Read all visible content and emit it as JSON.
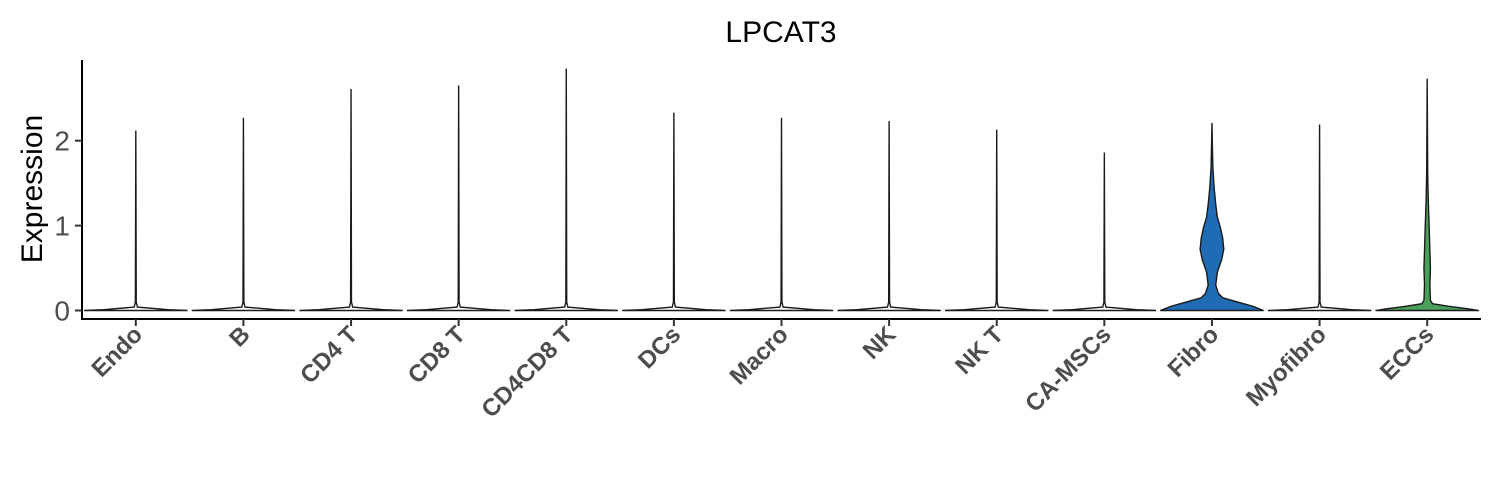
{
  "chart_data": {
    "type": "violin",
    "title": "LPCAT3",
    "xlabel": "",
    "ylabel": "Expression",
    "ylim": [
      -0.1,
      2.95
    ],
    "yticks": [
      0,
      1,
      2
    ],
    "grid": false,
    "legend": "none",
    "categories": [
      "Endo",
      "B",
      "CD4 T",
      "CD8 T",
      "CD4CD8 T",
      "DCs",
      "Macro",
      "NK",
      "NK T",
      "CA-MSCs",
      "Fibro",
      "Myofibro",
      "ECCs"
    ],
    "series": [
      {
        "max": 2.12,
        "color": "#ffffff",
        "profile": [
          [
            0,
            0.48
          ],
          [
            0.01,
            0.3
          ],
          [
            0.04,
            0.015
          ],
          [
            0.1,
            0.004
          ]
        ]
      },
      {
        "max": 2.27,
        "color": "#ffffff",
        "profile": [
          [
            0,
            0.48
          ],
          [
            0.01,
            0.3
          ],
          [
            0.04,
            0.015
          ],
          [
            0.1,
            0.004
          ]
        ]
      },
      {
        "max": 2.61,
        "color": "#ffffff",
        "profile": [
          [
            0,
            0.48
          ],
          [
            0.01,
            0.3
          ],
          [
            0.04,
            0.015
          ],
          [
            0.1,
            0.004
          ]
        ]
      },
      {
        "max": 2.65,
        "color": "#ffffff",
        "profile": [
          [
            0,
            0.48
          ],
          [
            0.01,
            0.3
          ],
          [
            0.04,
            0.015
          ],
          [
            0.1,
            0.004
          ]
        ]
      },
      {
        "max": 2.85,
        "color": "#ffffff",
        "profile": [
          [
            0,
            0.48
          ],
          [
            0.01,
            0.3
          ],
          [
            0.04,
            0.015
          ],
          [
            0.1,
            0.004
          ]
        ]
      },
      {
        "max": 2.33,
        "color": "#ffffff",
        "profile": [
          [
            0,
            0.48
          ],
          [
            0.01,
            0.3
          ],
          [
            0.04,
            0.015
          ],
          [
            0.1,
            0.004
          ]
        ]
      },
      {
        "max": 2.27,
        "color": "#ffffff",
        "profile": [
          [
            0,
            0.48
          ],
          [
            0.01,
            0.3
          ],
          [
            0.04,
            0.015
          ],
          [
            0.1,
            0.004
          ]
        ]
      },
      {
        "max": 2.23,
        "color": "#ffffff",
        "profile": [
          [
            0,
            0.48
          ],
          [
            0.01,
            0.3
          ],
          [
            0.04,
            0.015
          ],
          [
            0.1,
            0.004
          ]
        ]
      },
      {
        "max": 2.13,
        "color": "#ffffff",
        "profile": [
          [
            0,
            0.48
          ],
          [
            0.01,
            0.3
          ],
          [
            0.04,
            0.015
          ],
          [
            0.1,
            0.004
          ]
        ]
      },
      {
        "max": 1.86,
        "color": "#ffffff",
        "profile": [
          [
            0,
            0.48
          ],
          [
            0.01,
            0.3
          ],
          [
            0.04,
            0.015
          ],
          [
            0.1,
            0.004
          ]
        ]
      },
      {
        "max": 2.21,
        "color": "#1f6bb4",
        "profile": [
          [
            0,
            0.48
          ],
          [
            0.05,
            0.38
          ],
          [
            0.1,
            0.24
          ],
          [
            0.15,
            0.1
          ],
          [
            0.2,
            0.06
          ],
          [
            0.3,
            0.035
          ],
          [
            0.45,
            0.05
          ],
          [
            0.6,
            0.09
          ],
          [
            0.72,
            0.11
          ],
          [
            0.85,
            0.1
          ],
          [
            0.97,
            0.08
          ],
          [
            1.1,
            0.05
          ],
          [
            1.25,
            0.035
          ],
          [
            1.45,
            0.02
          ],
          [
            1.7,
            0.008
          ],
          [
            2.0,
            0.003
          ]
        ]
      },
      {
        "max": 2.19,
        "color": "#ffffff",
        "profile": [
          [
            0,
            0.48
          ],
          [
            0.01,
            0.3
          ],
          [
            0.04,
            0.015
          ],
          [
            0.1,
            0.004
          ]
        ]
      },
      {
        "max": 2.73,
        "color": "#4aa05a",
        "profile": [
          [
            0,
            0.48
          ],
          [
            0.02,
            0.38
          ],
          [
            0.05,
            0.2
          ],
          [
            0.08,
            0.05
          ],
          [
            0.12,
            0.03
          ],
          [
            0.3,
            0.025
          ],
          [
            0.5,
            0.03
          ],
          [
            0.7,
            0.025
          ],
          [
            1.0,
            0.018
          ],
          [
            1.3,
            0.01
          ],
          [
            1.6,
            0.005
          ],
          [
            2.0,
            0.003
          ]
        ]
      }
    ]
  }
}
